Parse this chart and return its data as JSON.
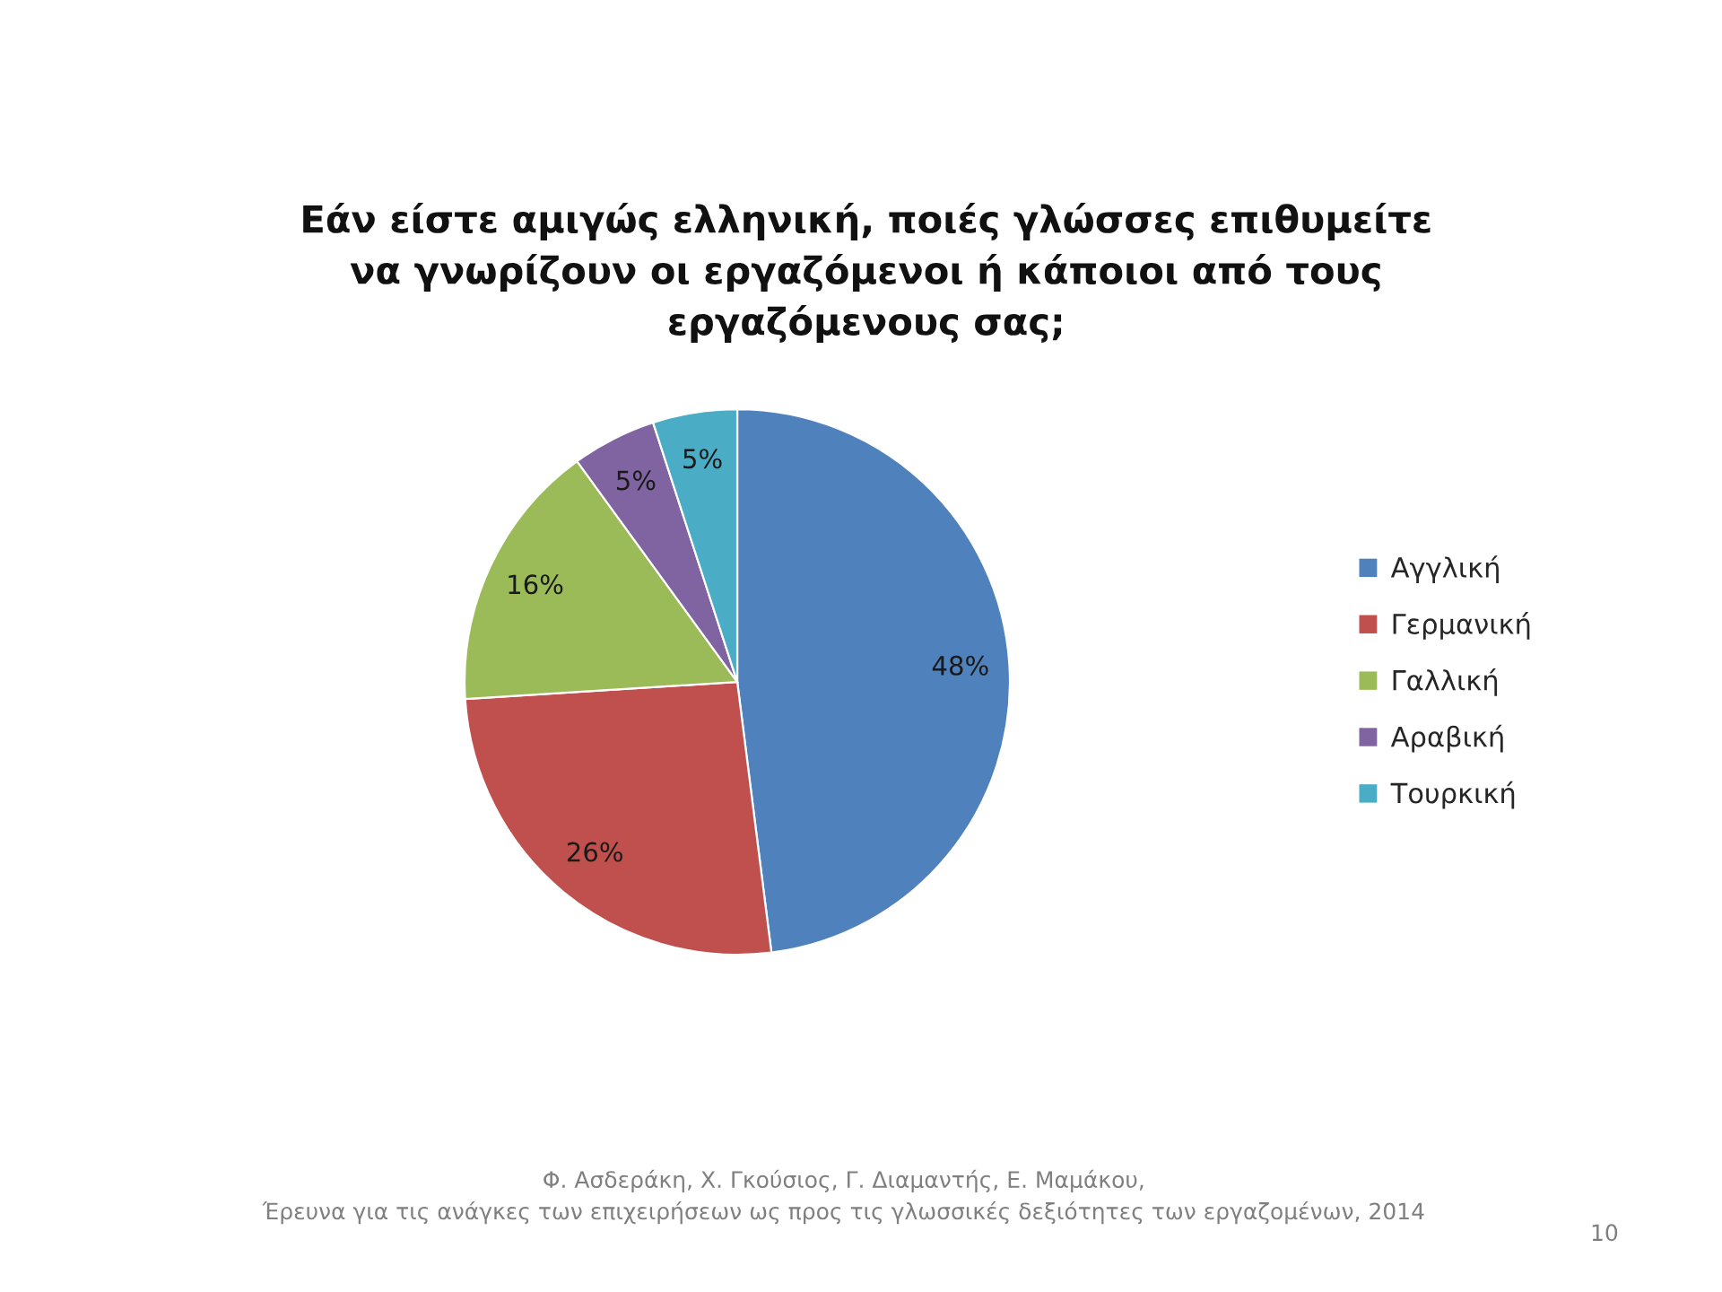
{
  "chart_data": {
    "type": "pie",
    "title": "Εάν είστε αμιγώς ελληνική, ποιές γλώσσες επιθυμείτε\nνα γνωρίζουν οι εργαζόμενοι ή κάποιοι από τους\nεργαζόμενους σας;",
    "categories": [
      "Αγγλική",
      "Γερμανική",
      "Γαλλική",
      "Αραβική",
      "Τουρκική"
    ],
    "values": [
      48,
      26,
      16,
      5,
      5
    ],
    "value_labels": [
      "48%",
      "26%",
      "16%",
      "5%",
      "5%"
    ],
    "colors": [
      "#4f81bd",
      "#c0504d",
      "#9bbb59",
      "#8064a2",
      "#4bacc6"
    ],
    "legend": "right",
    "annotations": [
      "Φ. Ασδεράκη, Χ. Γκούσιος, Γ. Διαμαντής, Ε. Μαμάκου,\nΈρευνα για τις ανάγκες των επιχειρήσεων ως προς τις γλωσσικές δεξιότητες των εργαζομένων, 2014",
      "10"
    ]
  }
}
